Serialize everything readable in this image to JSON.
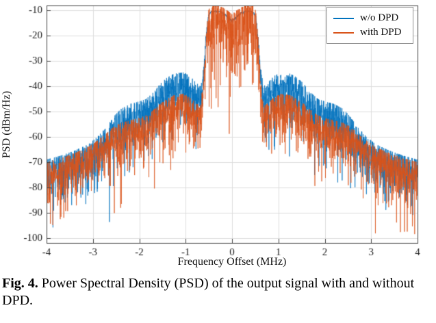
{
  "chart_data": {
    "type": "line",
    "title": "",
    "xlabel": "Frequency Offset (MHz)",
    "ylabel": "PSD (dBm/Hz)",
    "xlim": [
      -4,
      4
    ],
    "ylim": [
      -102,
      -8
    ],
    "xticks": [
      -4,
      -3,
      -2,
      -1,
      0,
      1,
      2,
      3,
      4
    ],
    "yticks": [
      -10,
      -20,
      -30,
      -40,
      -50,
      -60,
      -70,
      -80,
      -90,
      -100
    ],
    "grid": true,
    "legend_position": "top-right",
    "series": [
      {
        "name": "w/o DPD",
        "color": "#0072BD",
        "envelope": [
          [
            -4.0,
            -73,
            1
          ],
          [
            -3.7,
            -71.5,
            1
          ],
          [
            -3.4,
            -69.5,
            1
          ],
          [
            -3.1,
            -67,
            1
          ],
          [
            -2.9,
            -64,
            1
          ],
          [
            -2.7,
            -60,
            1
          ],
          [
            -2.55,
            -56,
            1
          ],
          [
            -2.4,
            -53,
            1
          ],
          [
            -2.2,
            -51,
            1
          ],
          [
            -2.0,
            -50,
            1
          ],
          [
            -1.85,
            -49,
            1
          ],
          [
            -1.7,
            -46.5,
            1
          ],
          [
            -1.55,
            -43,
            1
          ],
          [
            -1.4,
            -40.5,
            1
          ],
          [
            -1.25,
            -39,
            1
          ],
          [
            -1.05,
            -38.5,
            1
          ],
          [
            -0.9,
            -40,
            1
          ],
          [
            -0.78,
            -42.5,
            1
          ],
          [
            -0.68,
            -44,
            0.9
          ],
          [
            -0.62,
            -36,
            0.5
          ],
          [
            -0.56,
            -20,
            0.2
          ],
          [
            -0.51,
            -12,
            0.08
          ],
          [
            -0.45,
            -10.4,
            0.05
          ],
          [
            -0.32,
            -10.2,
            0.05
          ],
          [
            -0.2,
            -10.8,
            0.05
          ],
          [
            -0.1,
            -12.3,
            0.06
          ],
          [
            0.0,
            -14,
            0.07
          ],
          [
            0.1,
            -12.3,
            0.06
          ],
          [
            0.2,
            -10.8,
            0.05
          ],
          [
            0.32,
            -10.2,
            0.05
          ],
          [
            0.45,
            -10.4,
            0.05
          ],
          [
            0.51,
            -12,
            0.08
          ],
          [
            0.56,
            -20,
            0.2
          ],
          [
            0.62,
            -36,
            0.5
          ],
          [
            0.68,
            -44,
            0.9
          ],
          [
            0.78,
            -42.5,
            1
          ],
          [
            0.9,
            -40,
            1
          ],
          [
            1.05,
            -38.5,
            1
          ],
          [
            1.25,
            -39,
            1
          ],
          [
            1.4,
            -40.5,
            1
          ],
          [
            1.55,
            -43,
            1
          ],
          [
            1.7,
            -46.5,
            1
          ],
          [
            1.85,
            -49,
            1
          ],
          [
            2.0,
            -50,
            1
          ],
          [
            2.2,
            -51,
            1
          ],
          [
            2.4,
            -53,
            1
          ],
          [
            2.55,
            -56,
            1
          ],
          [
            2.7,
            -60,
            1
          ],
          [
            2.9,
            -64,
            1
          ],
          [
            3.1,
            -67,
            1
          ],
          [
            3.4,
            -69.5,
            1
          ],
          [
            3.7,
            -71.5,
            1
          ],
          [
            4.0,
            -73,
            1
          ]
        ]
      },
      {
        "name": "with DPD",
        "color": "#D95319",
        "envelope": [
          [
            -4.0,
            -74,
            1
          ],
          [
            -3.7,
            -72.5,
            1
          ],
          [
            -3.4,
            -70.5,
            1
          ],
          [
            -3.1,
            -68,
            1
          ],
          [
            -2.9,
            -65.5,
            1
          ],
          [
            -2.7,
            -62.5,
            1
          ],
          [
            -2.55,
            -60,
            1
          ],
          [
            -2.4,
            -58.5,
            1
          ],
          [
            -2.2,
            -57.5,
            1
          ],
          [
            -2.0,
            -56.5,
            1
          ],
          [
            -1.85,
            -55.5,
            1
          ],
          [
            -1.7,
            -53.5,
            1
          ],
          [
            -1.55,
            -51,
            1
          ],
          [
            -1.4,
            -49,
            1
          ],
          [
            -1.25,
            -47.5,
            1
          ],
          [
            -1.05,
            -47,
            1
          ],
          [
            -0.9,
            -48.5,
            1
          ],
          [
            -0.78,
            -50.5,
            1
          ],
          [
            -0.68,
            -52,
            0.95
          ],
          [
            -0.62,
            -42,
            0.9
          ],
          [
            -0.56,
            -24,
            1.1
          ],
          [
            -0.51,
            -14,
            1.4
          ],
          [
            -0.45,
            -12,
            1.6
          ],
          [
            -0.32,
            -12,
            1.6
          ],
          [
            -0.2,
            -12.8,
            1.6
          ],
          [
            -0.1,
            -14,
            1.5
          ],
          [
            0.0,
            -15.5,
            1.5
          ],
          [
            0.1,
            -14,
            1.5
          ],
          [
            0.2,
            -12.8,
            1.6
          ],
          [
            0.32,
            -12,
            1.6
          ],
          [
            0.45,
            -12,
            1.6
          ],
          [
            0.51,
            -14,
            1.4
          ],
          [
            0.56,
            -24,
            1.1
          ],
          [
            0.62,
            -42,
            0.9
          ],
          [
            0.68,
            -52,
            0.95
          ],
          [
            0.78,
            -50.5,
            1
          ],
          [
            0.9,
            -48.5,
            1
          ],
          [
            1.05,
            -47,
            1
          ],
          [
            1.25,
            -47.5,
            1
          ],
          [
            1.4,
            -49,
            1
          ],
          [
            1.55,
            -51,
            1
          ],
          [
            1.7,
            -53.5,
            1
          ],
          [
            1.85,
            -55.5,
            1
          ],
          [
            2.0,
            -56.5,
            1
          ],
          [
            2.2,
            -57.5,
            1
          ],
          [
            2.4,
            -58.5,
            1
          ],
          [
            2.55,
            -60,
            1
          ],
          [
            2.7,
            -62.5,
            1
          ],
          [
            2.9,
            -65.5,
            1
          ],
          [
            3.1,
            -68,
            1
          ],
          [
            3.4,
            -70.5,
            1
          ],
          [
            3.7,
            -72.5,
            1
          ],
          [
            4.0,
            -74,
            1
          ]
        ]
      }
    ]
  },
  "caption": {
    "label": "Fig. 4.",
    "text": "Power Spectral Density (PSD) of the output signal with and without DPD."
  }
}
